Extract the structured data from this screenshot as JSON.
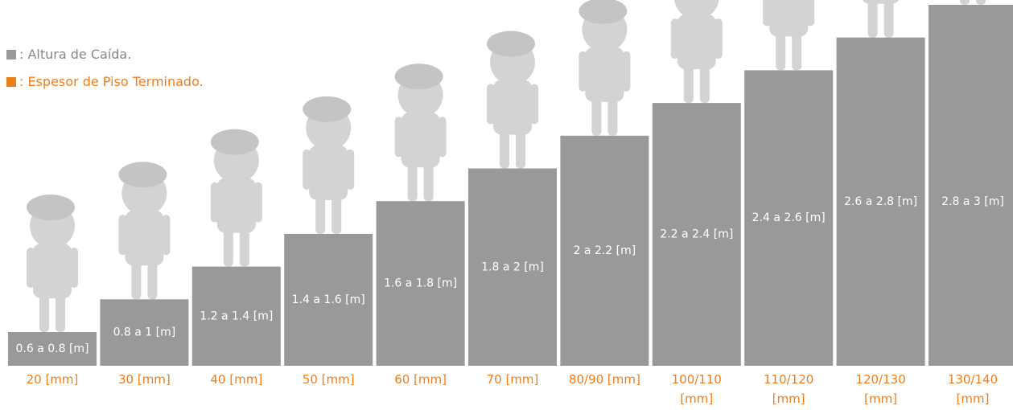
{
  "legend": [
    {
      "label": ": Altura de Caída."
    },
    {
      "label": ": Espesor de Piso Terminado."
    }
  ],
  "steps": [
    {
      "height": "0.6 a 0.8 [m]",
      "thickness": "20 [mm]"
    },
    {
      "height": "0.8 a 1 [m]",
      "thickness": "30 [mm]"
    },
    {
      "height": "1.2 a 1.4 [m]",
      "thickness": "40 [mm]"
    },
    {
      "height": "1.4 a 1.6 [m]",
      "thickness": "50 [mm]"
    },
    {
      "height": "1.6 a 1.8 [m]",
      "thickness": "60 [mm]"
    },
    {
      "height": "1.8 a 2 [m]",
      "thickness": "70 [mm]"
    },
    {
      "height": "2 a 2.2 [m]",
      "thickness": "80/90 [mm]"
    },
    {
      "height": "2.2 a 2.4 [m]",
      "thickness": "100/110 [mm]"
    },
    {
      "height": "2.4 a 2.6 [m]",
      "thickness": "110/120 [mm]"
    },
    {
      "height": "2.6 a 2.8 [m]",
      "thickness": "120/130 [mm]"
    },
    {
      "height": "2.8 a 3 [m]",
      "thickness": "130/140 [mm]"
    }
  ]
}
